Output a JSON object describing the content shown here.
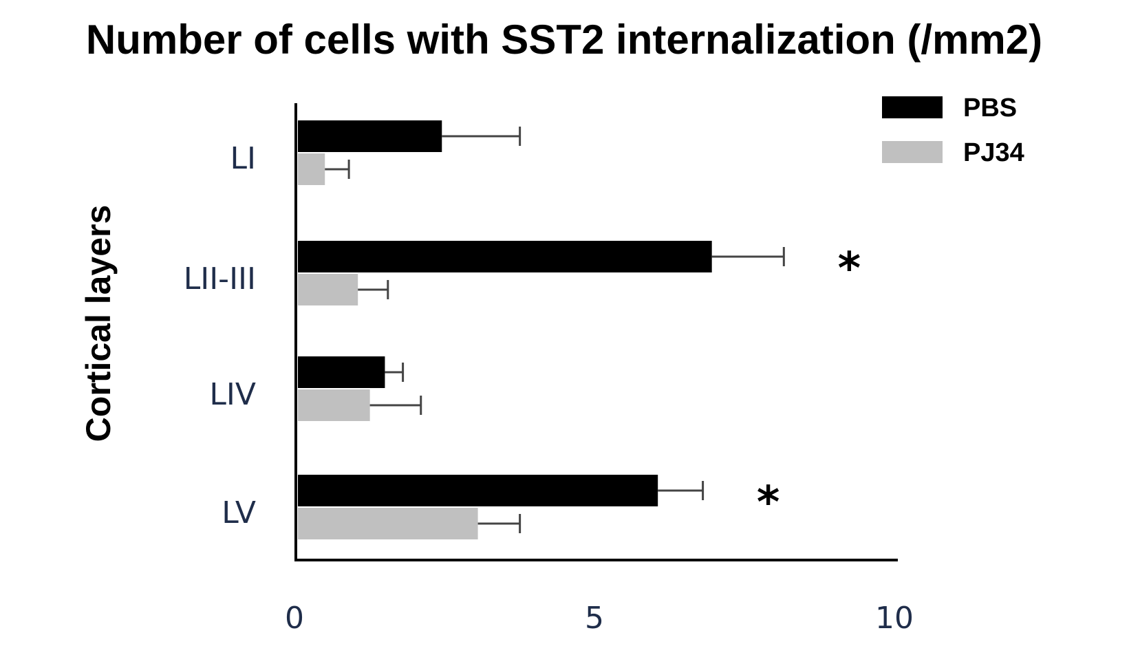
{
  "chart_data": {
    "type": "bar",
    "orientation": "horizontal",
    "title": "Number of cells with SST2 internalization (/mm2)",
    "ylabel": "Cortical layers",
    "xlabel": "",
    "xlim": [
      0,
      10
    ],
    "xticks": [
      "0",
      "5",
      "10"
    ],
    "categories": [
      "LI",
      "LII-III",
      "LIV",
      "LV"
    ],
    "series": [
      {
        "name": "PBS",
        "color": "#000000",
        "values": [
          2.4,
          6.9,
          1.45,
          6.0
        ],
        "errors": [
          1.3,
          1.2,
          0.3,
          0.75
        ]
      },
      {
        "name": "PJ34",
        "color": "#c0c0c0",
        "values": [
          0.45,
          1.0,
          1.2,
          3.0
        ],
        "errors": [
          0.4,
          0.5,
          0.85,
          0.7
        ]
      }
    ],
    "significance": [
      "",
      "*",
      "",
      "*"
    ],
    "legend_position": "top-right",
    "grid": false
  }
}
